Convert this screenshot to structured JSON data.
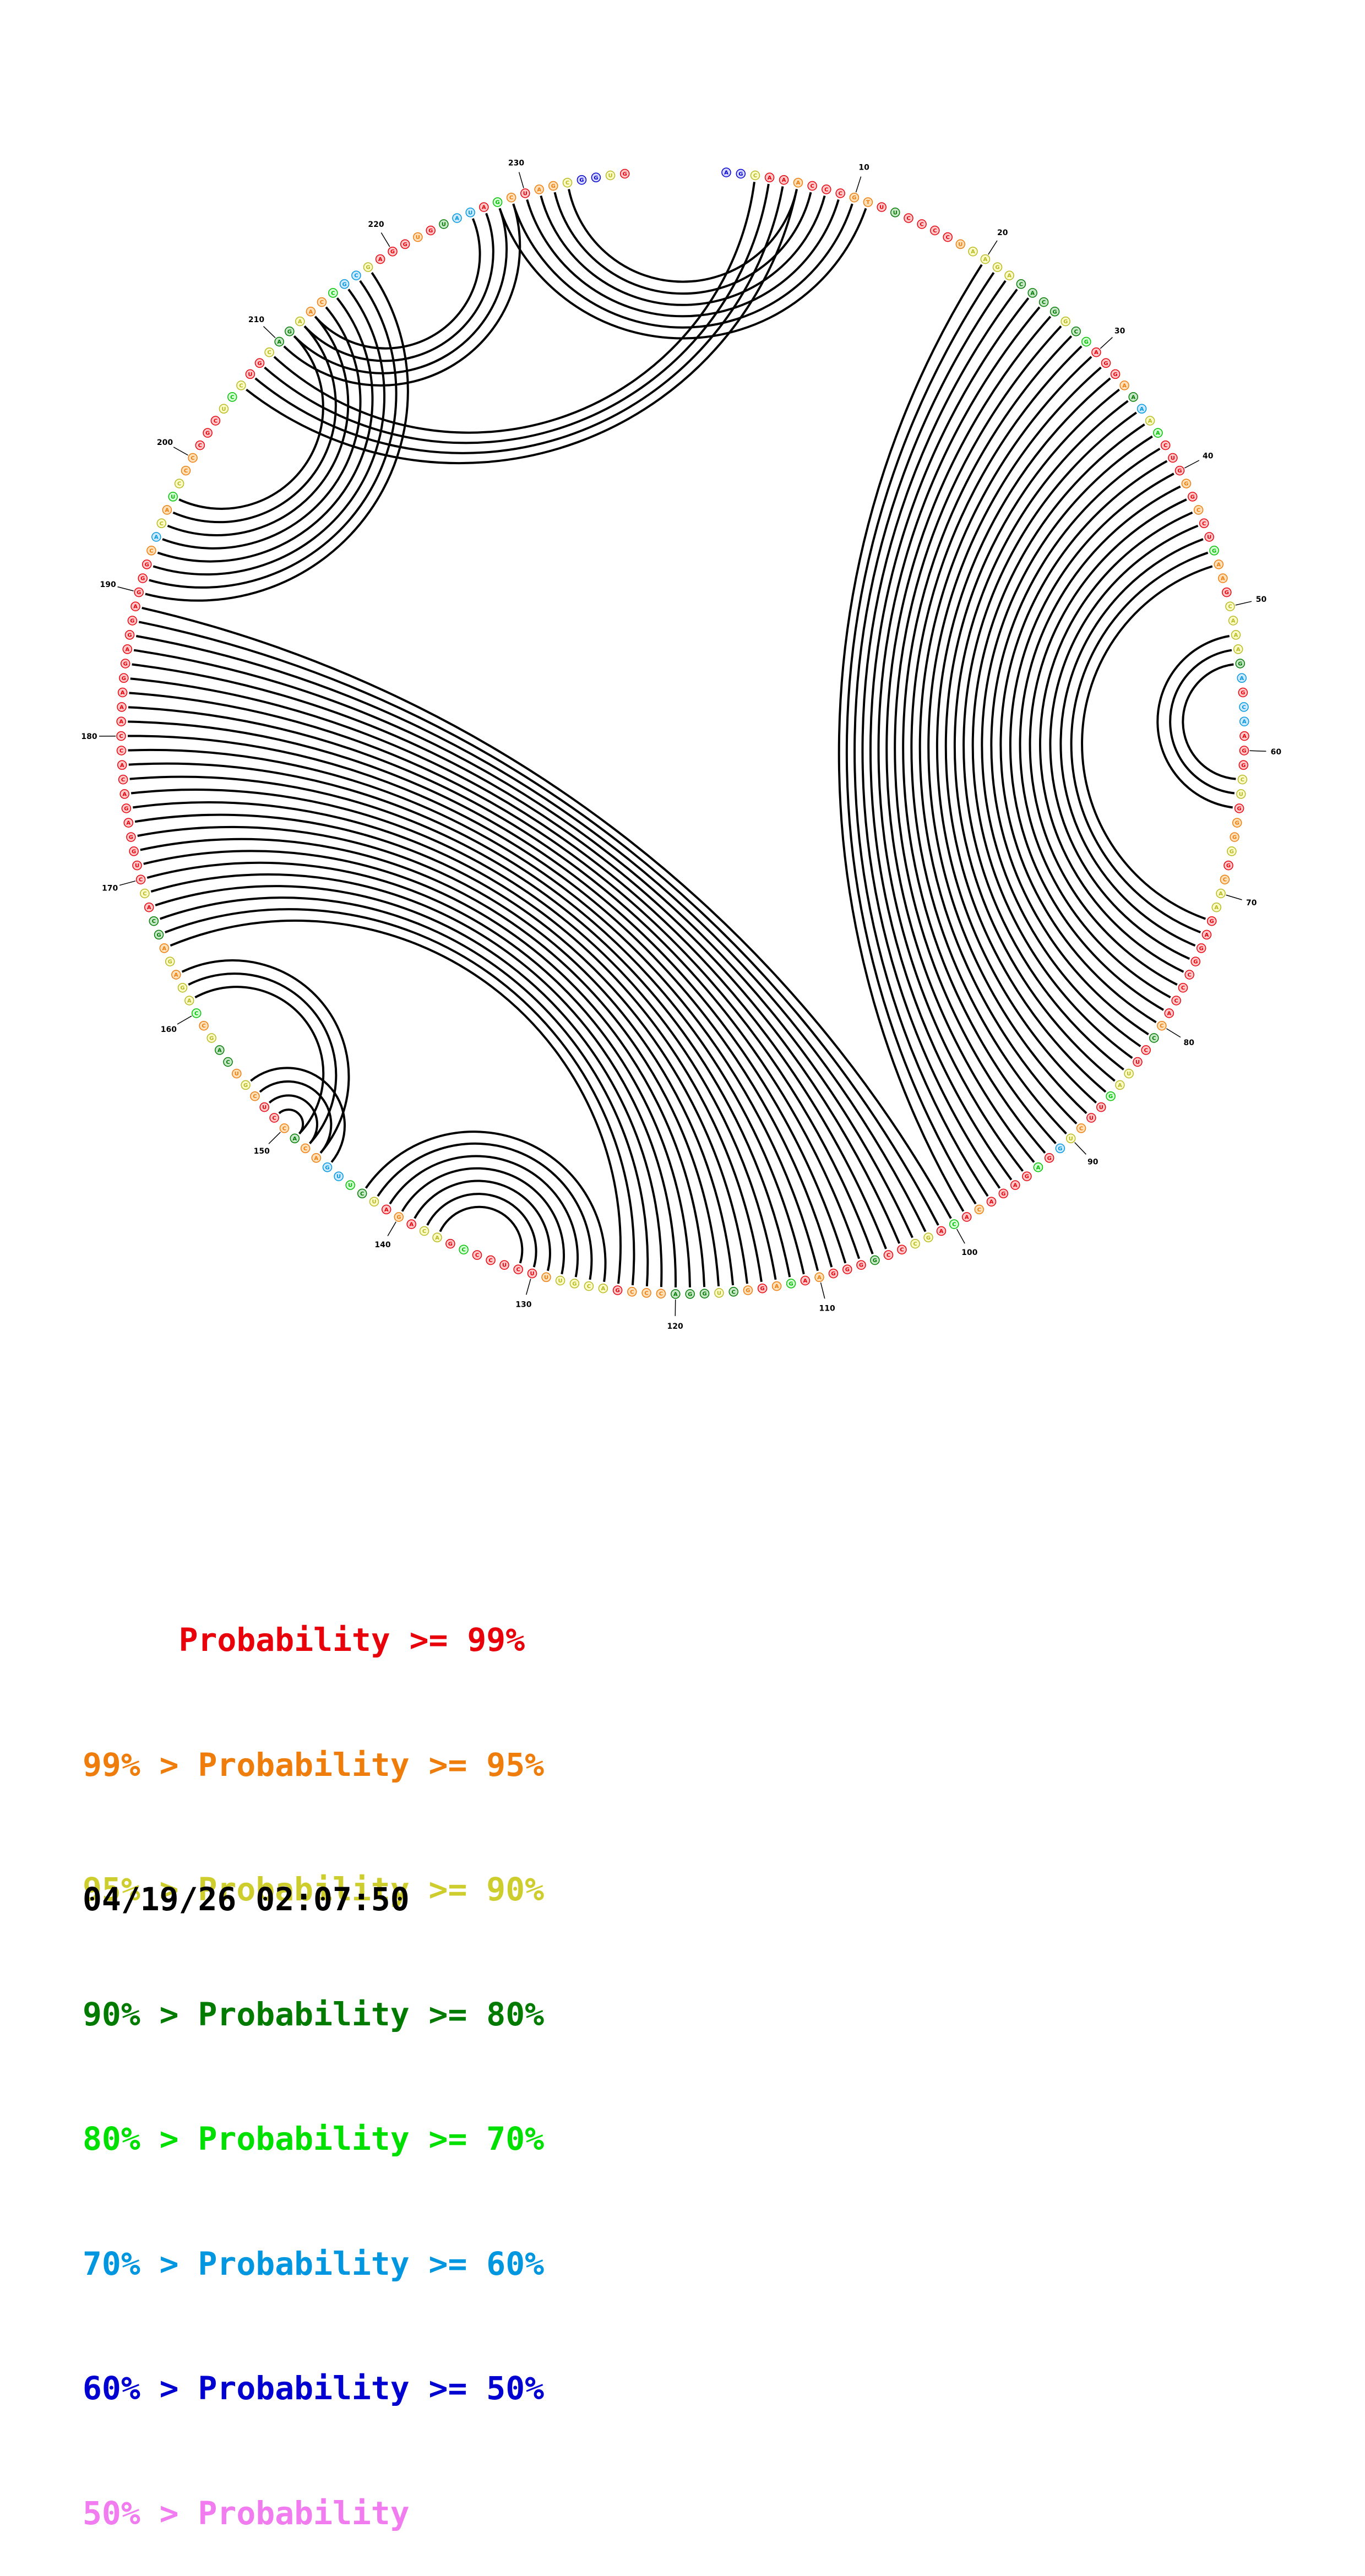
{
  "diagram": {
    "sequence": "AGCAAACCCGTUUCCCCUAAGACACGGCGAGGAAAAACUGGGCCUGAAGCAAAGAGCAAGGCUGGGGGCAAGAGGCCCACCCUUAGUUCUGGAGAGACACAGCCCGGGGAAGAGGCUGGACCCGACGUUUCUCCCGACAGAUCUUGACACCUCGUCAGCCAGAGAGCACCUGGAGACACCAAAGGAGGAGGGCACAUCCCCGCUCCUGCAGAACCGCGAGGUGUAUAGCUAGCGGUG",
    "tick_labels": [
      "10",
      "20",
      "30",
      "40",
      "50",
      "60",
      "70",
      "80",
      "90",
      "100",
      "110",
      "120",
      "130",
      "140",
      "150",
      "160",
      "170",
      "180",
      "190",
      "200",
      "210",
      "220",
      "230"
    ],
    "base_color_codes": "66200100011030000122223333234000135240001010041102222350550002201120122000000001300224001250400001040220030001041013233311102222100000402201023455113100121332142212133020000000000000000000000015214211000242002332114552000103550410112",
    "helices": [
      {
        "i": 6,
        "j": 233,
        "length": 6
      },
      {
        "i": 20,
        "j": 99,
        "length": 8
      },
      {
        "i": 28,
        "j": 91,
        "length": 20
      },
      {
        "i": 52,
        "j": 64,
        "length": 3
      },
      {
        "i": 100,
        "j": 189,
        "length": 25
      },
      {
        "i": 125,
        "j": 143,
        "length": 7
      },
      {
        "i": 146,
        "j": 154,
        "length": 5
      },
      {
        "i": 147,
        "j": 163,
        "length": 3
      },
      {
        "i": 190,
        "j": 218,
        "length": 8
      },
      {
        "i": 206,
        "j": 6,
        "length": 4
      },
      {
        "i": 210,
        "j": 229,
        "length": 4
      }
    ]
  },
  "legend": {
    "entries": [
      {
        "text": "     Probability >= 99%",
        "color": "#e8000b"
      },
      {
        "text": "99% > Probability >= 95%",
        "color": "#ef7d0c"
      },
      {
        "text": "95% > Probability >= 90%",
        "color": "#cdcd2e"
      },
      {
        "text": "90% > Probability >= 80%",
        "color": "#007b00"
      },
      {
        "text": "80% > Probability >= 70%",
        "color": "#00e000"
      },
      {
        "text": "70% > Probability >= 60%",
        "color": "#0097e0"
      },
      {
        "text": "60% > Probability >= 50%",
        "color": "#0000d0"
      },
      {
        "text": "50% > Probability",
        "color": "#f07cf0"
      }
    ]
  },
  "timestamp": "04/19/26 02:07:50",
  "palette": {
    "fills": [
      "#ffc8c8",
      "#ffe0b8",
      "#fbfbc8",
      "#c8e6c8",
      "#d4ffd4",
      "#cde9ff",
      "#d6d6ff",
      "#ffd6ff"
    ],
    "strokes": [
      "#e8000b",
      "#ef7d0c",
      "#b8b820",
      "#007b00",
      "#00c000",
      "#0097e0",
      "#0000d0",
      "#e06be0"
    ]
  }
}
